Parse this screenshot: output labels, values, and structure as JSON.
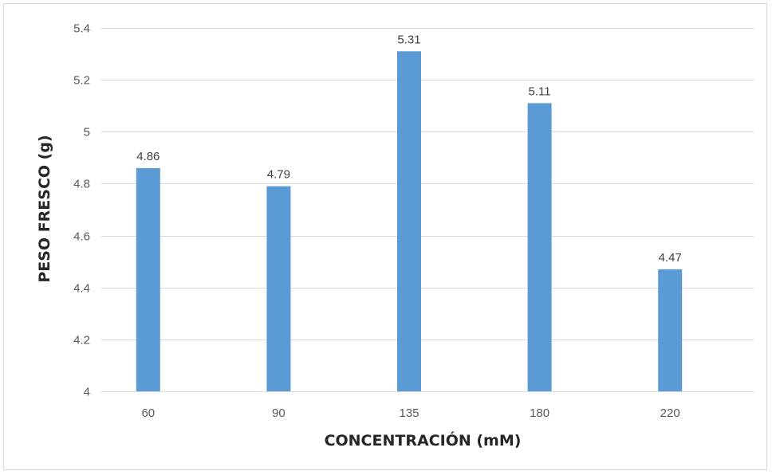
{
  "chart_data": {
    "type": "bar",
    "categories": [
      "60",
      "90",
      "135",
      "180",
      "220"
    ],
    "values": [
      4.86,
      4.79,
      5.31,
      5.11,
      4.47
    ],
    "data_labels": [
      "4.86",
      "4.79",
      "5.31",
      "5.11",
      "4.47"
    ],
    "xlabel": "CONCENTRACIÓN (mM)",
    "ylabel": "PESO FRESCO (g)",
    "ylim": [
      4,
      5.4
    ],
    "yticks": [
      4,
      4.2,
      4.4,
      4.6,
      4.8,
      5,
      5.2,
      5.4
    ],
    "ytick_labels": [
      "4",
      "4.2",
      "4.4",
      "4.6",
      "4.8",
      "5",
      "5.2",
      "5.4"
    ],
    "grid": true,
    "legend": "none",
    "bar_color": "#5b9bd5"
  }
}
